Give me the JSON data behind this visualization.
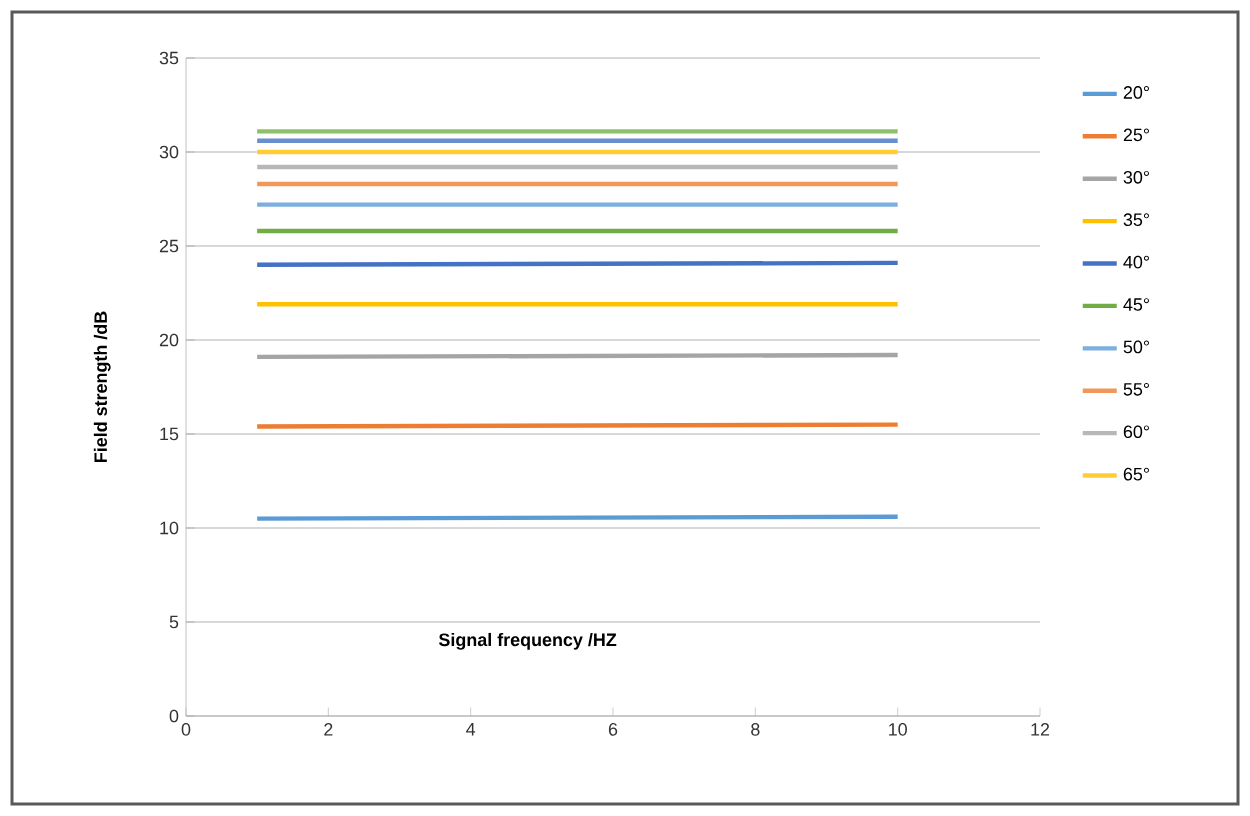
{
  "chart_data": {
    "type": "line",
    "xlabel": "Signal frequency /HZ",
    "ylabel": "Field strength /dB",
    "xlim": [
      0,
      12
    ],
    "ylim": [
      0,
      35
    ],
    "xticks": [
      0,
      2,
      4,
      6,
      8,
      10,
      12
    ],
    "yticks": [
      0,
      5,
      10,
      15,
      20,
      25,
      30,
      35
    ],
    "grid": "y",
    "legend": "right",
    "marker": "none",
    "line_style": "solid",
    "x": [
      1,
      10
    ],
    "series": [
      {
        "name": "20°",
        "color": "#5b9bd5",
        "values": [
          10.5,
          10.6
        ]
      },
      {
        "name": "25°",
        "color": "#ed7d31",
        "values": [
          15.4,
          15.5
        ]
      },
      {
        "name": "30°",
        "color": "#a5a5a5",
        "values": [
          19.1,
          19.2
        ]
      },
      {
        "name": "35°",
        "color": "#ffc000",
        "values": [
          21.9,
          21.9
        ]
      },
      {
        "name": "40°",
        "color": "#4472c4",
        "values": [
          24.0,
          24.1
        ]
      },
      {
        "name": "45°",
        "color": "#70ad47",
        "values": [
          25.8,
          25.8
        ]
      },
      {
        "name": "50°",
        "color": "#7cafdd",
        "values": [
          27.2,
          27.2
        ]
      },
      {
        "name": "55°",
        "color": "#f1975a",
        "values": [
          28.3,
          28.3
        ]
      },
      {
        "name": "60°",
        "color": "#b7b7b7",
        "values": [
          29.2,
          29.2
        ]
      },
      {
        "name": "65°",
        "color": "#ffcd33",
        "values": [
          30.0,
          30.0
        ]
      },
      {
        "color": "#698ed0",
        "values": [
          30.6,
          30.6
        ]
      },
      {
        "color": "#8cc168",
        "values": [
          31.1,
          31.1
        ]
      }
    ]
  }
}
